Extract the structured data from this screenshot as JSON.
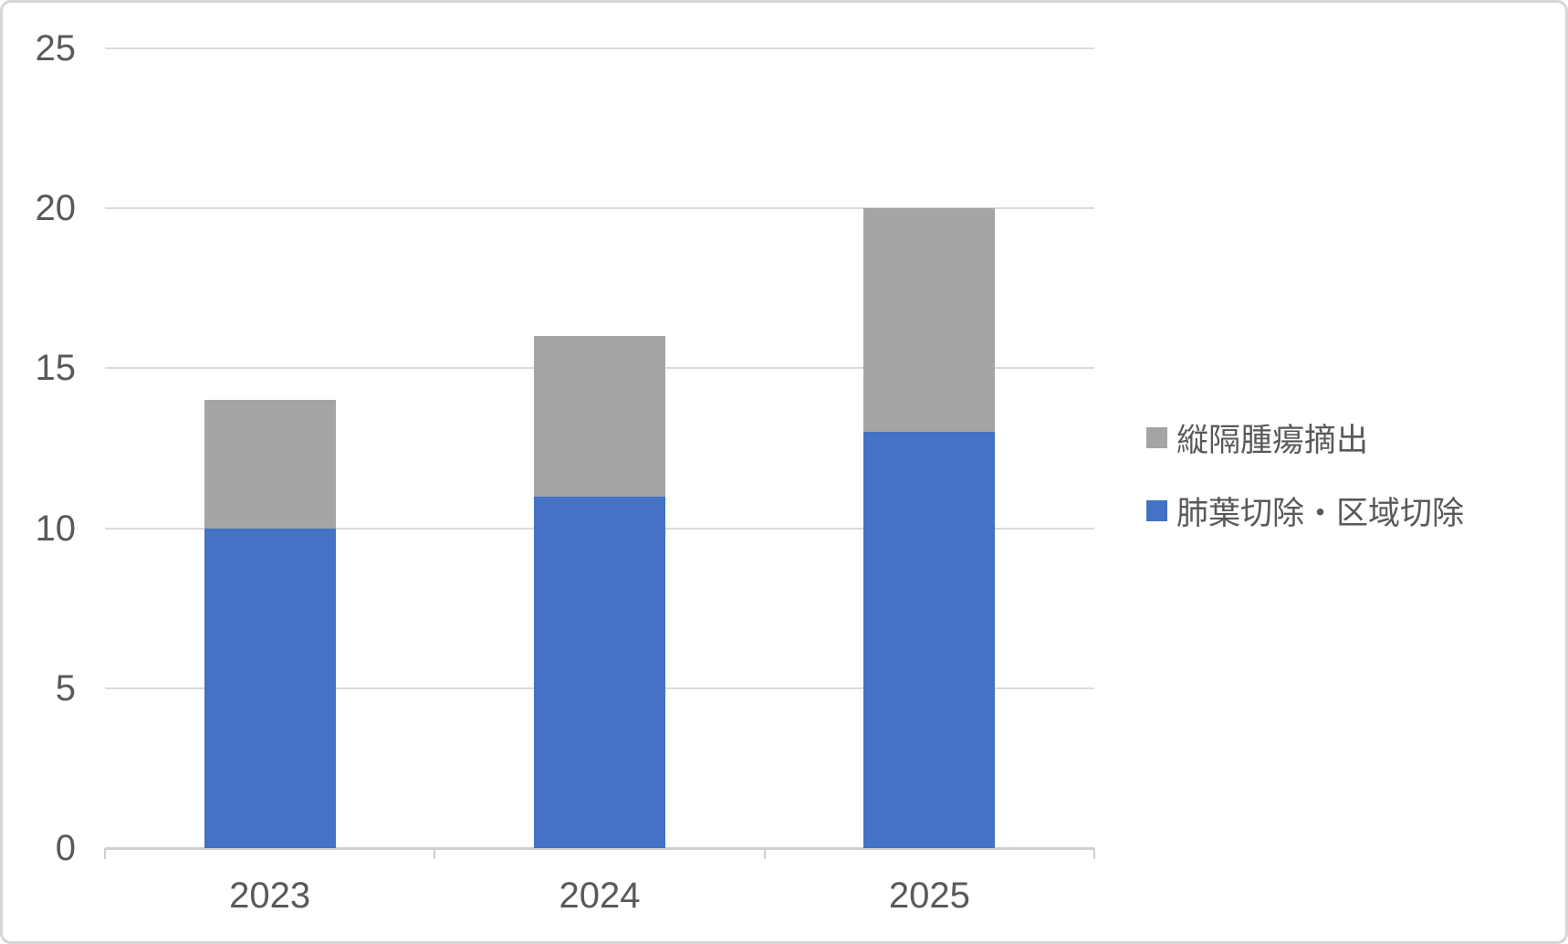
{
  "chart_data": {
    "type": "bar",
    "stacked": true,
    "title": "",
    "xlabel": "",
    "ylabel": "",
    "categories": [
      "2023",
      "2024",
      "2025"
    ],
    "series": [
      {
        "name": "肺葉切除・区域切除",
        "color": "#4472C4",
        "values": [
          10,
          11,
          13
        ]
      },
      {
        "name": "縦隔腫瘍摘出",
        "color": "#A5A5A5",
        "values": [
          4,
          5,
          7
        ]
      }
    ],
    "stack_totals": [
      14,
      16,
      20
    ],
    "ylim": [
      0,
      25
    ],
    "yticks": [
      0,
      5,
      10,
      15,
      20,
      25
    ],
    "grid": true,
    "legend_position": "right"
  },
  "legend": {
    "items": [
      {
        "label": "縦隔腫瘍摘出",
        "color": "#A5A5A5"
      },
      {
        "label": "肺葉切除・区域切除",
        "color": "#4472C4"
      }
    ]
  },
  "colors": {
    "series_blue": "#4472C4",
    "series_gray": "#A5A5A5",
    "gridline": "#DBDBDB",
    "axis_line": "#CFCFCF",
    "label_text": "#595959",
    "canvas_border": "#D6D6D6",
    "background": "#FFFFFF"
  }
}
